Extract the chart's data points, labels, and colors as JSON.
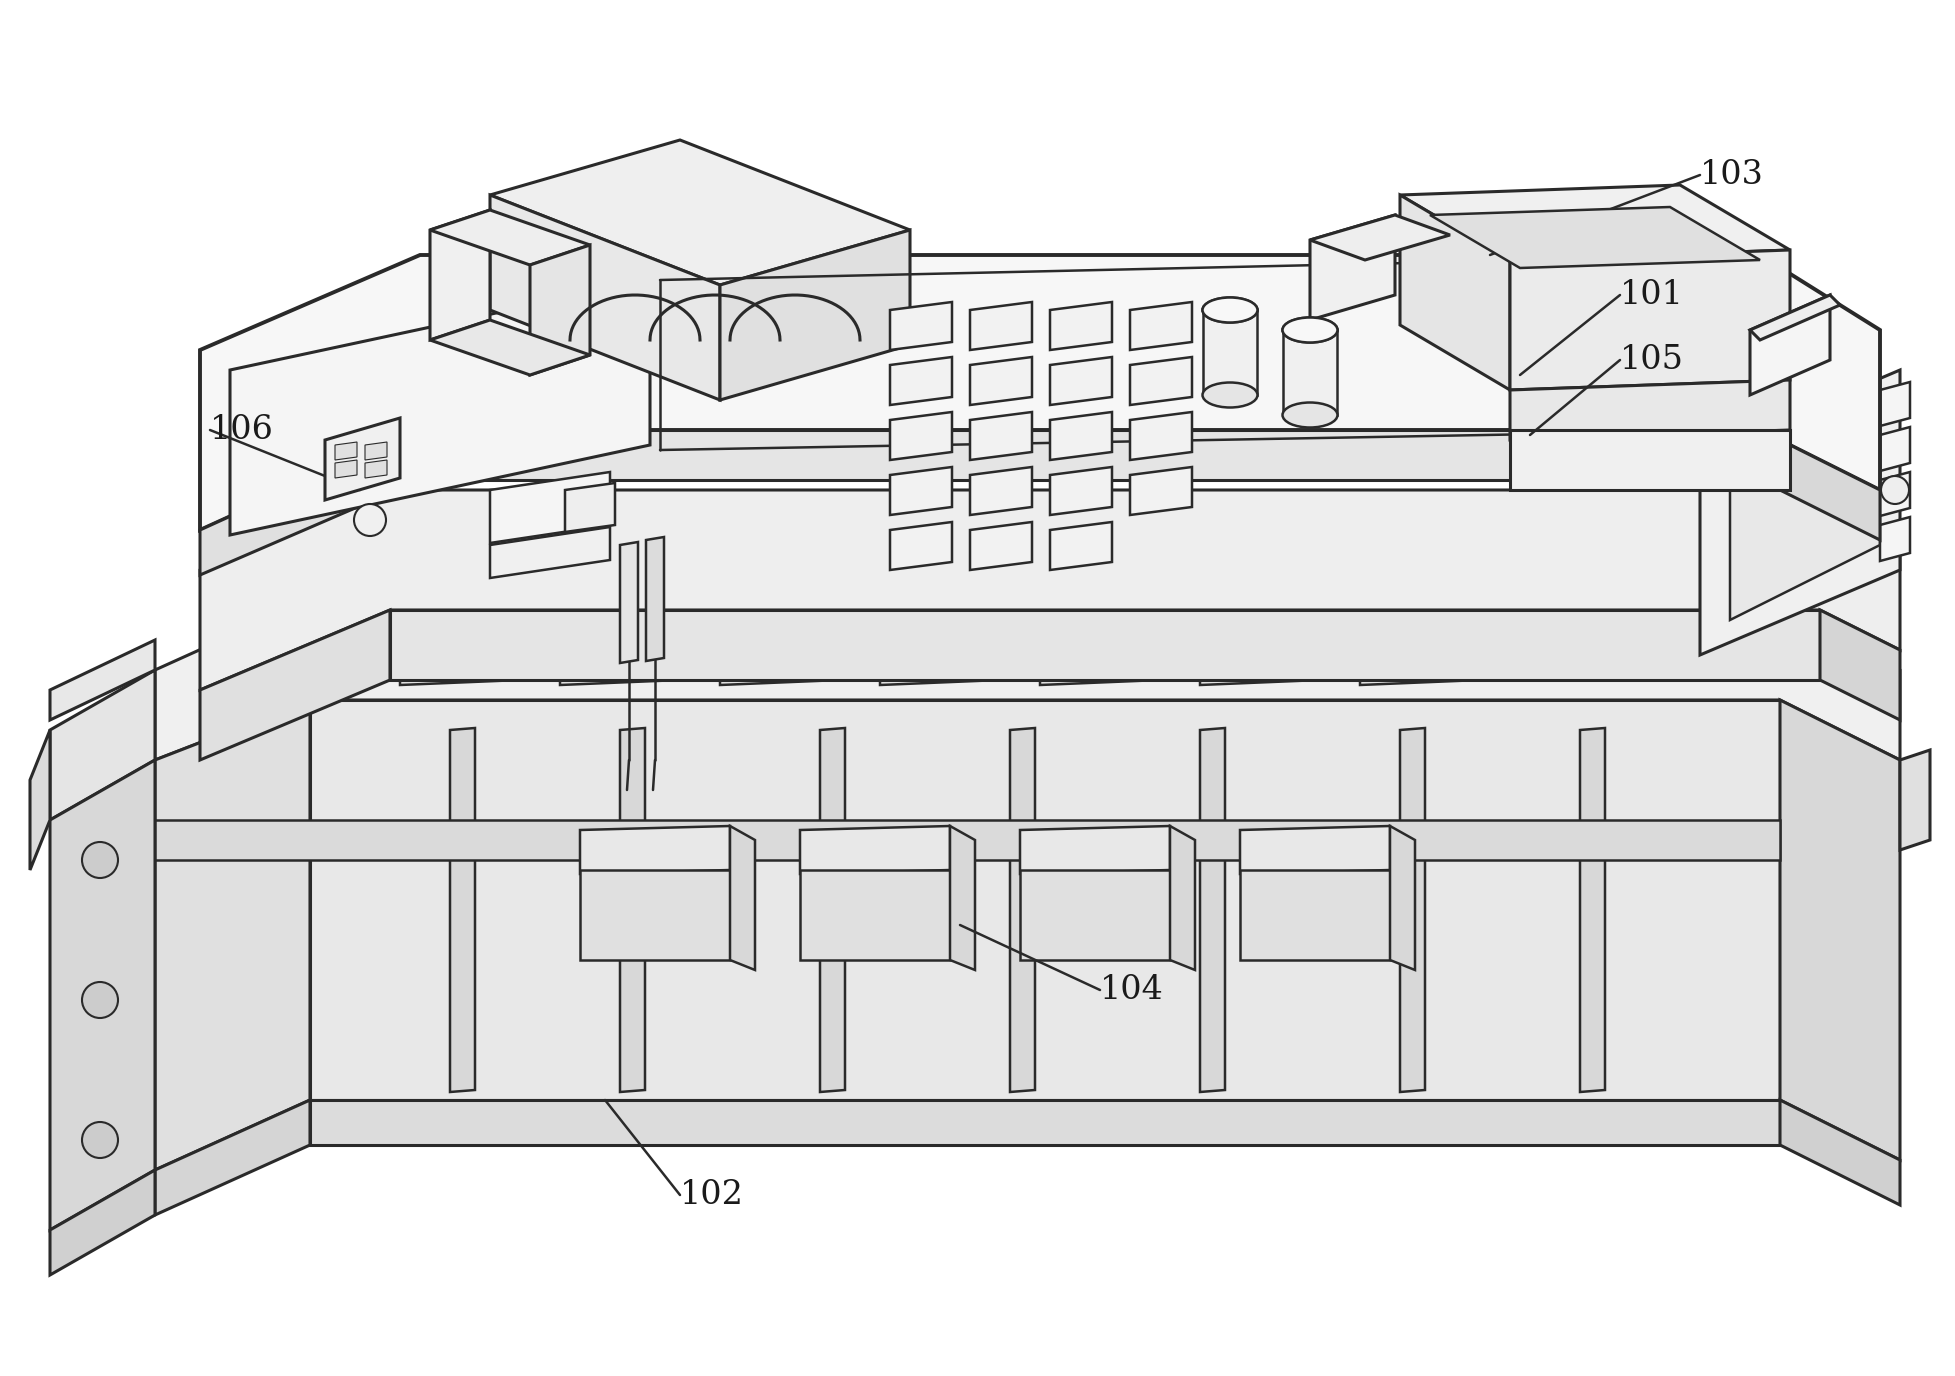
{
  "background_color": "#ffffff",
  "line_color": "#2a2a2a",
  "line_width": 1.8,
  "label_fontsize": 24,
  "fig_width": 19.56,
  "fig_height": 13.76,
  "labels_with_lines": [
    [
      "101",
      1620,
      295,
      1520,
      375
    ],
    [
      "102",
      680,
      1195,
      605,
      1100
    ],
    [
      "103",
      1700,
      175,
      1490,
      255
    ],
    [
      "104",
      1100,
      990,
      960,
      925
    ],
    [
      "105",
      1620,
      360,
      1530,
      435
    ],
    [
      "106",
      210,
      430,
      360,
      490
    ]
  ]
}
